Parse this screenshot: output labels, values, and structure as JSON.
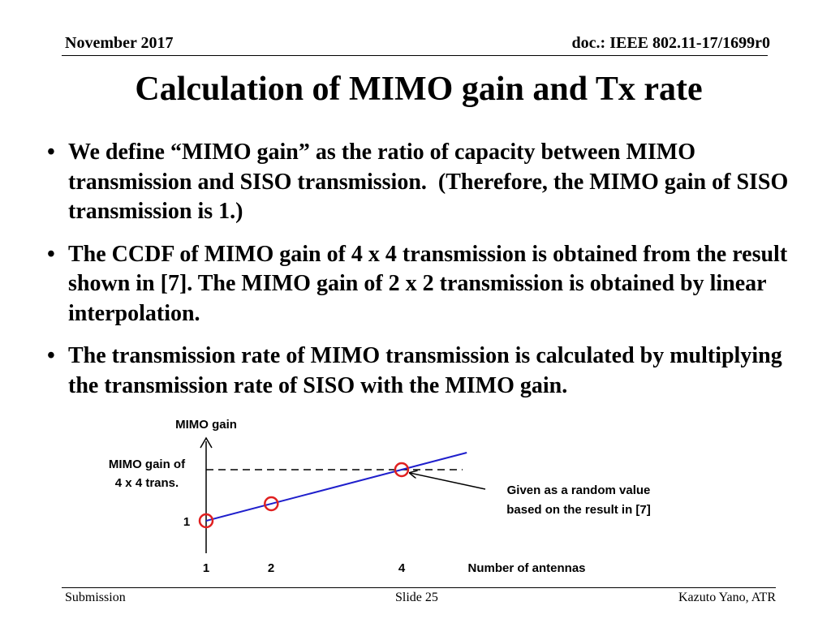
{
  "header": {
    "date": "November 2017",
    "doc_id": "doc.: IEEE 802.11-17/1699r0"
  },
  "title": "Calculation of MIMO gain and Tx rate",
  "bullets": [
    "We define “MIMO gain” as the ratio of capacity between MIMO transmission and SISO transmission.  (Therefore, the MIMO gain of SISO transmission is 1.)",
    "The CCDF of MIMO gain of 4 x 4 transmission is obtained from the result shown in [7]. The MIMO gain of 2 x 2 transmission is obtained by linear interpolation.",
    "The transmission rate of MIMO transmission is calculated by multiplying the transmission rate of SISO with the MIMO gain."
  ],
  "chart_data": {
    "type": "line",
    "ylabel": "MIMO gain",
    "xlabel": "Number of antennas",
    "x_ticks": [
      "1",
      "2",
      "4"
    ],
    "y_ticks": [
      "1"
    ],
    "y_annotation_line1": "MIMO gain of",
    "y_annotation_line2": "4 x 4 trans.",
    "callout_line1": "Given as a random value",
    "callout_line2": "based on the result in [7]",
    "points": [
      {
        "x": 1,
        "y": 1
      },
      {
        "x": 2,
        "y": 1.5
      },
      {
        "x": 4,
        "y": 2.5
      }
    ],
    "line_color": "#1f1fcc",
    "marker_color": "#e02020"
  },
  "footer": {
    "left": "Submission",
    "center": "Slide 25",
    "right": "Kazuto Yano, ATR"
  }
}
